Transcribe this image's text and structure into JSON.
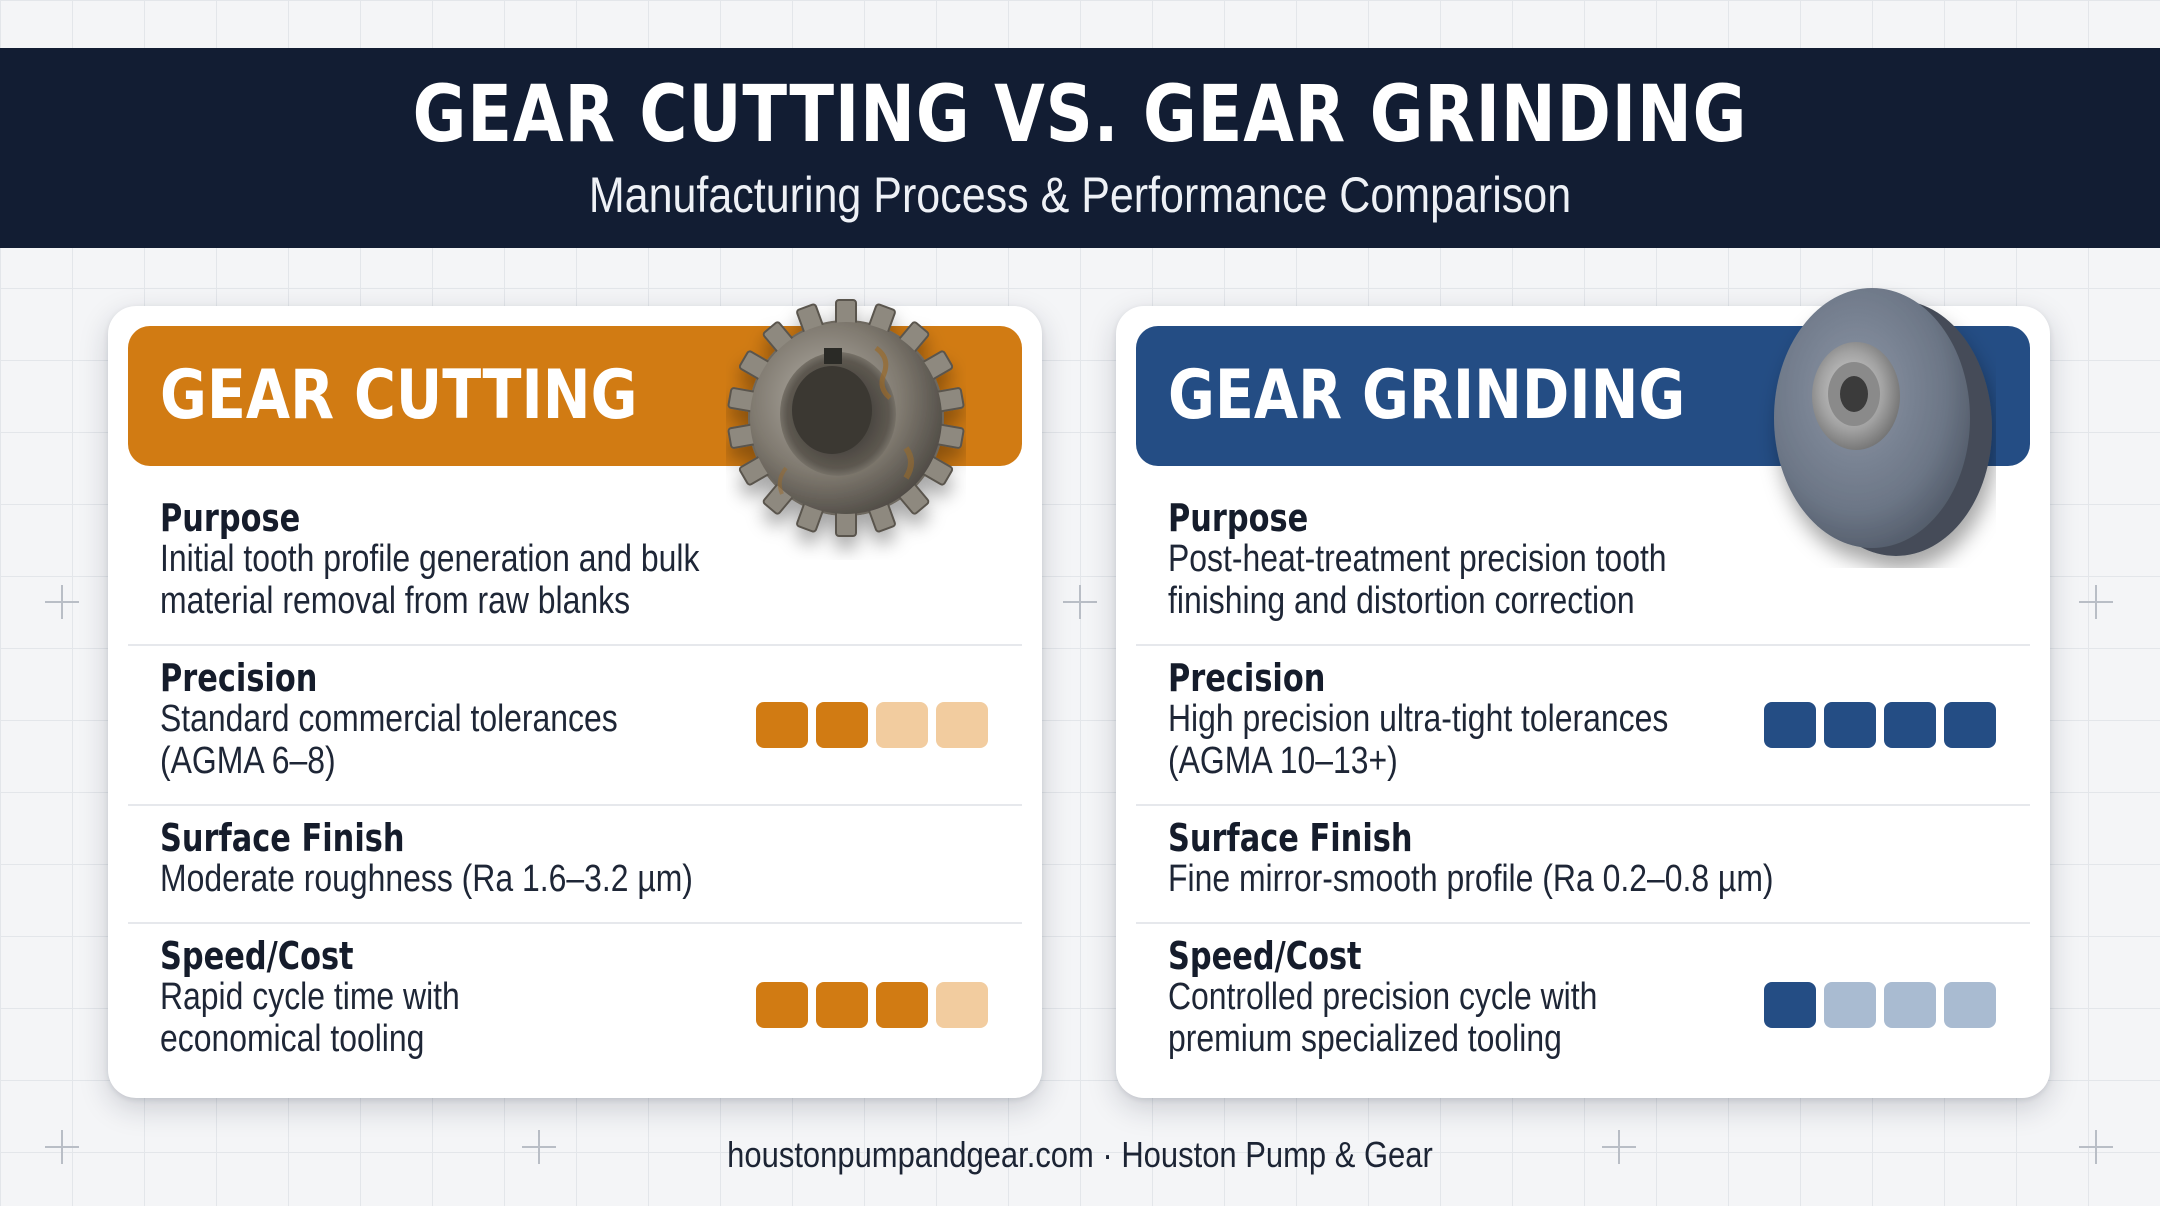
{
  "header": {
    "title": "GEAR CUTTING VS. GEAR GRINDING",
    "subtitle": "Manufacturing Process & Performance Comparison"
  },
  "colors": {
    "banner": "#121d33",
    "cutting_accent": "#d17b13",
    "cutting_light": "#f2cc9f",
    "grinding_accent": "#244d84",
    "grinding_light": "#a9bbd1"
  },
  "cutting": {
    "title": "GEAR CUTTING",
    "icon": "spur-gear-icon",
    "purpose_label": "Purpose",
    "purpose_lines": [
      "Initial tooth profile generation and bulk",
      "material removal from raw blanks"
    ],
    "precision_label": "Precision",
    "precision_lines": [
      "Standard commercial tolerances",
      "(AGMA 6–8)"
    ],
    "precision_rating": 2,
    "finish_label": "Surface Finish",
    "finish_lines": [
      "Moderate roughness (Ra 1.6–3.2 µm)"
    ],
    "speed_label": "Speed/Cost",
    "speed_lines": [
      "Rapid cycle time with",
      "economical tooling"
    ],
    "speed_rating": 3
  },
  "grinding": {
    "title": "GEAR GRINDING",
    "icon": "grinding-wheel-icon",
    "purpose_label": "Purpose",
    "purpose_lines": [
      "Post-heat-treatment precision tooth",
      "finishing and distortion correction"
    ],
    "precision_label": "Precision",
    "precision_lines": [
      "High precision ultra-tight tolerances",
      "(AGMA 10–13+)"
    ],
    "precision_rating": 4,
    "finish_label": "Surface Finish",
    "finish_lines": [
      "Fine mirror-smooth profile (Ra 0.2–0.8 µm)"
    ],
    "speed_label": "Speed/Cost",
    "speed_lines": [
      "Controlled precision cycle with",
      "premium specialized tooling"
    ],
    "speed_rating": 1
  },
  "footer": "houstonpumpandgear.com · Houston Pump & Gear"
}
